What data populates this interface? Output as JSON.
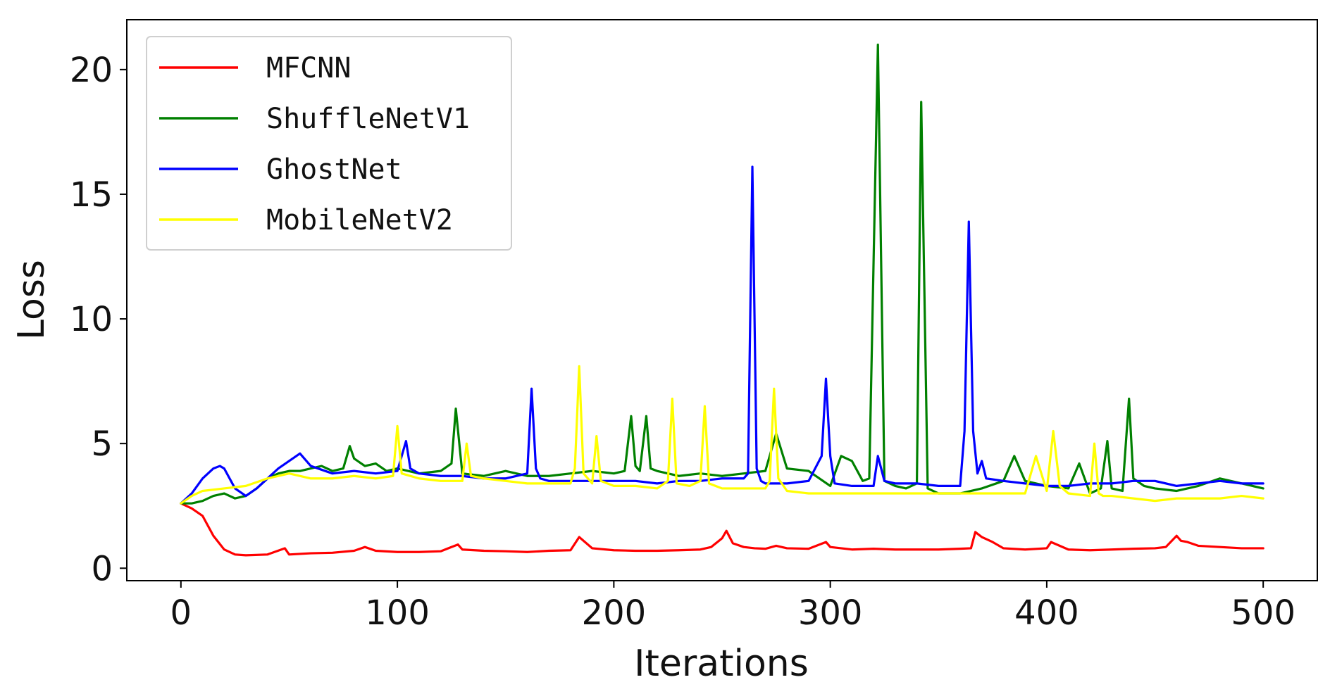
{
  "chart_data": {
    "type": "line",
    "title": "",
    "xlabel": "Iterations",
    "ylabel": "Loss",
    "xlim": [
      -25,
      525
    ],
    "ylim": [
      -0.5,
      22
    ],
    "xticks": [
      0,
      100,
      200,
      300,
      400,
      500
    ],
    "yticks": [
      0,
      5,
      10,
      15,
      20
    ],
    "x_tick_labels": [
      "0",
      "100",
      "200",
      "300",
      "400",
      "500"
    ],
    "y_tick_labels": [
      "0",
      "5",
      "10",
      "15",
      "20"
    ],
    "grid": false,
    "legend_position": "top-left",
    "series": [
      {
        "name": "MFCNN",
        "color": "#ff0000",
        "x": [
          0,
          5,
          10,
          15,
          20,
          25,
          30,
          40,
          48,
          50,
          60,
          70,
          80,
          85,
          90,
          100,
          110,
          120,
          128,
          130,
          140,
          150,
          160,
          170,
          180,
          184,
          190,
          200,
          210,
          220,
          230,
          240,
          245,
          250,
          252,
          255,
          260,
          265,
          270,
          275,
          280,
          290,
          298,
          300,
          310,
          320,
          330,
          340,
          350,
          360,
          365,
          367,
          370,
          375,
          380,
          390,
          400,
          402,
          410,
          420,
          430,
          440,
          450,
          455,
          460,
          462,
          465,
          470,
          480,
          490,
          500
        ],
        "y": [
          2.6,
          2.4,
          2.1,
          1.3,
          0.75,
          0.55,
          0.52,
          0.55,
          0.8,
          0.55,
          0.6,
          0.62,
          0.7,
          0.85,
          0.7,
          0.65,
          0.65,
          0.68,
          0.95,
          0.75,
          0.7,
          0.68,
          0.65,
          0.7,
          0.72,
          1.25,
          0.8,
          0.72,
          0.7,
          0.7,
          0.72,
          0.75,
          0.85,
          1.2,
          1.5,
          1.0,
          0.85,
          0.8,
          0.78,
          0.9,
          0.8,
          0.78,
          1.05,
          0.85,
          0.75,
          0.78,
          0.75,
          0.75,
          0.75,
          0.78,
          0.8,
          1.45,
          1.25,
          1.05,
          0.8,
          0.75,
          0.8,
          1.05,
          0.75,
          0.72,
          0.75,
          0.78,
          0.8,
          0.85,
          1.3,
          1.1,
          1.05,
          0.9,
          0.85,
          0.8,
          0.8
        ]
      },
      {
        "name": "ShuffleNetV1",
        "color": "#008000",
        "x": [
          0,
          5,
          10,
          15,
          20,
          25,
          30,
          35,
          40,
          45,
          50,
          55,
          60,
          65,
          70,
          75,
          78,
          80,
          85,
          90,
          95,
          100,
          110,
          120,
          125,
          127,
          130,
          140,
          150,
          160,
          170,
          180,
          190,
          200,
          205,
          208,
          210,
          212,
          215,
          217,
          220,
          230,
          240,
          250,
          260,
          270,
          275,
          280,
          290,
          300,
          305,
          310,
          315,
          318,
          322,
          325,
          330,
          335,
          340,
          342,
          345,
          350,
          360,
          370,
          380,
          385,
          390,
          400,
          410,
          415,
          420,
          425,
          428,
          430,
          435,
          438,
          440,
          445,
          450,
          460,
          470,
          480,
          490,
          500
        ],
        "y": [
          2.6,
          2.6,
          2.7,
          2.9,
          3.0,
          2.8,
          2.9,
          3.2,
          3.6,
          3.8,
          3.9,
          3.9,
          4.0,
          4.1,
          3.9,
          4.0,
          4.9,
          4.4,
          4.1,
          4.2,
          3.9,
          4.0,
          3.8,
          3.9,
          4.2,
          6.4,
          3.8,
          3.7,
          3.9,
          3.7,
          3.7,
          3.8,
          3.9,
          3.8,
          3.9,
          6.1,
          4.1,
          3.9,
          6.1,
          4.0,
          3.9,
          3.7,
          3.8,
          3.7,
          3.8,
          3.9,
          5.4,
          4.0,
          3.9,
          3.3,
          4.5,
          4.3,
          3.5,
          3.6,
          21.0,
          3.5,
          3.3,
          3.2,
          3.4,
          18.7,
          3.2,
          3.0,
          3.0,
          3.2,
          3.5,
          4.5,
          3.5,
          3.3,
          3.2,
          4.2,
          3.0,
          3.2,
          5.1,
          3.2,
          3.1,
          6.8,
          3.6,
          3.3,
          3.2,
          3.1,
          3.3,
          3.6,
          3.4,
          3.2
        ]
      },
      {
        "name": "GhostNet",
        "color": "#0000ff",
        "x": [
          0,
          5,
          10,
          15,
          18,
          20,
          25,
          30,
          35,
          40,
          45,
          50,
          55,
          60,
          70,
          80,
          90,
          100,
          104,
          106,
          110,
          120,
          130,
          140,
          150,
          160,
          162,
          164,
          166,
          170,
          180,
          190,
          200,
          210,
          220,
          230,
          240,
          250,
          260,
          262,
          264,
          266,
          268,
          270,
          280,
          290,
          296,
          298,
          300,
          302,
          310,
          320,
          322,
          325,
          330,
          340,
          350,
          360,
          362,
          364,
          366,
          368,
          370,
          372,
          380,
          390,
          400,
          410,
          420,
          430,
          440,
          450,
          460,
          470,
          480,
          490,
          500
        ],
        "y": [
          2.6,
          3.0,
          3.6,
          4.0,
          4.1,
          4.0,
          3.2,
          2.9,
          3.2,
          3.6,
          4.0,
          4.3,
          4.6,
          4.1,
          3.8,
          3.9,
          3.8,
          3.9,
          5.1,
          4.0,
          3.8,
          3.7,
          3.7,
          3.6,
          3.6,
          3.8,
          7.2,
          4.0,
          3.6,
          3.5,
          3.5,
          3.5,
          3.5,
          3.5,
          3.4,
          3.5,
          3.5,
          3.6,
          3.6,
          3.8,
          16.1,
          4.0,
          3.5,
          3.4,
          3.4,
          3.5,
          4.5,
          7.6,
          4.5,
          3.4,
          3.3,
          3.3,
          4.5,
          3.5,
          3.4,
          3.4,
          3.3,
          3.3,
          5.5,
          13.9,
          5.5,
          3.8,
          4.3,
          3.6,
          3.5,
          3.4,
          3.3,
          3.3,
          3.4,
          3.4,
          3.5,
          3.5,
          3.3,
          3.4,
          3.5,
          3.4,
          3.4
        ]
      },
      {
        "name": "MobileNetV2",
        "color": "#ffff00",
        "x": [
          0,
          5,
          10,
          20,
          30,
          40,
          50,
          60,
          70,
          80,
          90,
          98,
          100,
          102,
          110,
          120,
          130,
          132,
          134,
          140,
          150,
          160,
          170,
          180,
          182,
          184,
          186,
          190,
          192,
          194,
          200,
          210,
          220,
          225,
          227,
          229,
          235,
          240,
          242,
          244,
          250,
          260,
          270,
          272,
          274,
          276,
          280,
          290,
          300,
          310,
          320,
          330,
          340,
          350,
          360,
          370,
          380,
          390,
          395,
          400,
          403,
          406,
          410,
          420,
          422,
          424,
          426,
          430,
          440,
          450,
          460,
          470,
          480,
          490,
          500
        ],
        "y": [
          2.6,
          2.9,
          3.1,
          3.2,
          3.3,
          3.6,
          3.8,
          3.6,
          3.6,
          3.7,
          3.6,
          3.7,
          5.7,
          3.8,
          3.6,
          3.5,
          3.5,
          5.0,
          3.7,
          3.6,
          3.5,
          3.4,
          3.4,
          3.4,
          4.0,
          8.1,
          3.8,
          3.4,
          5.3,
          3.5,
          3.3,
          3.3,
          3.2,
          3.5,
          6.8,
          3.4,
          3.3,
          3.5,
          6.5,
          3.4,
          3.2,
          3.2,
          3.2,
          3.5,
          7.2,
          3.6,
          3.1,
          3.0,
          3.0,
          3.0,
          3.0,
          3.0,
          3.0,
          3.0,
          3.0,
          3.0,
          3.0,
          3.0,
          4.5,
          3.1,
          5.5,
          3.3,
          3.0,
          2.9,
          5.0,
          3.0,
          2.9,
          2.9,
          2.8,
          2.7,
          2.8,
          2.8,
          2.8,
          2.9,
          2.8
        ]
      }
    ]
  }
}
